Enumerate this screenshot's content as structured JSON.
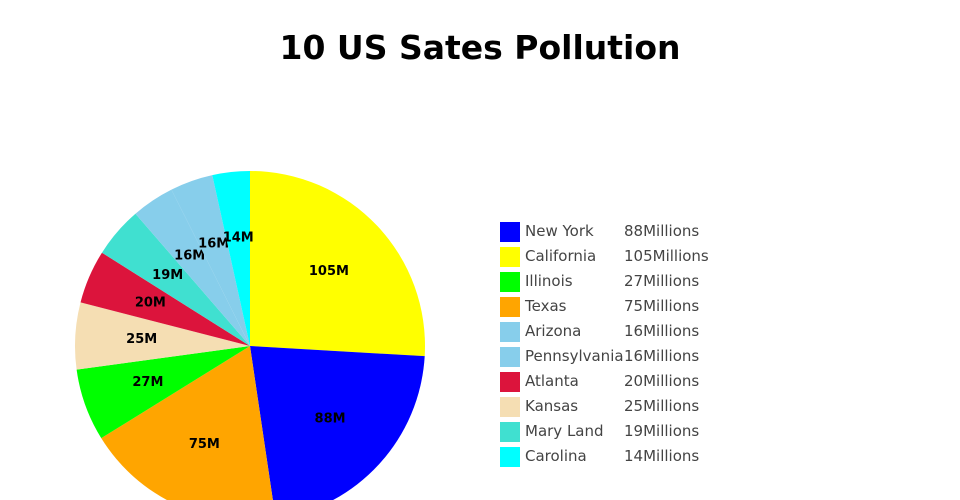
{
  "chart_data": {
    "type": "pie",
    "title": "10 US Sates Pollution",
    "slices": [
      {
        "name": "California",
        "value": 105,
        "label": "105M",
        "legend_value": "105Millions",
        "color": "#ffff00"
      },
      {
        "name": "New York",
        "value": 88,
        "label": "88M",
        "legend_value": "88Millions",
        "color": "#0000ff"
      },
      {
        "name": "Texas",
        "value": 75,
        "label": "75M",
        "legend_value": "75Millions",
        "color": "#ffa500"
      },
      {
        "name": "Illinois",
        "value": 27,
        "label": "27M",
        "legend_value": "27Millions",
        "color": "#00ff00"
      },
      {
        "name": "Kansas",
        "value": 25,
        "label": "25M",
        "legend_value": "25Millions",
        "color": "#f5deb3"
      },
      {
        "name": "Atlanta",
        "value": 20,
        "label": "20M",
        "legend_value": "20Millions",
        "color": "#dc143c"
      },
      {
        "name": "Mary Land",
        "value": 19,
        "label": "19M",
        "legend_value": "19Millions",
        "color": "#40e0d0"
      },
      {
        "name": "Arizona",
        "value": 16,
        "label": "16M",
        "legend_value": "16Millions",
        "color": "#87ceeb"
      },
      {
        "name": "Pennsylvania",
        "value": 16,
        "label": "16M",
        "legend_value": "16Millions",
        "color": "#87ceeb"
      },
      {
        "name": "Carolina",
        "value": 14,
        "label": "14M",
        "legend_value": "14Millions",
        "color": "#00ffff"
      }
    ],
    "legend": [
      {
        "name": "New York",
        "value": "88Millions",
        "color": "#0000ff"
      },
      {
        "name": "California",
        "value": "105Millions",
        "color": "#ffff00"
      },
      {
        "name": "Illinois",
        "value": "27Millions",
        "color": "#00ff00"
      },
      {
        "name": "Texas",
        "value": "75Millions",
        "color": "#ffa500"
      },
      {
        "name": "Arizona",
        "value": "16Millions",
        "color": "#87ceeb"
      },
      {
        "name": "Pennsylvania",
        "value": "16Millions",
        "color": "#87ceeb"
      },
      {
        "name": "Atlanta",
        "value": "20Millions",
        "color": "#dc143c"
      },
      {
        "name": "Kansas",
        "value": "25Millions",
        "color": "#f5deb3"
      },
      {
        "name": "Mary Land",
        "value": "19Millions",
        "color": "#40e0d0"
      },
      {
        "name": "Carolina",
        "value": "14Millions",
        "color": "#00ffff"
      }
    ],
    "legend_placement": "right",
    "start": "12 o'clock",
    "direction": "clockwise"
  }
}
